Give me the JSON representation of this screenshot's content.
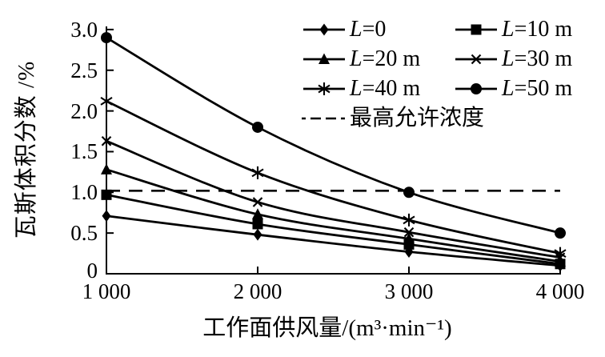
{
  "figure": {
    "background": "#ffffff",
    "line_color": "#000000",
    "text_color": "#000000"
  },
  "chart_data": {
    "type": "line",
    "title": "",
    "xlabel": "工作面供风量/(m³·min⁻¹)",
    "ylabel": "瓦斯体积分数 /%",
    "x": [
      1000,
      2000,
      3000,
      4000
    ],
    "x_tick_labels": [
      "1 000",
      "2 000",
      "3 000",
      "4 000"
    ],
    "y_ticks": [
      0,
      0.5,
      1.0,
      1.5,
      2.0,
      2.5,
      3.0
    ],
    "y_tick_labels": [
      "0",
      "0.5",
      "1.0",
      "1.5",
      "2.0",
      "2.5",
      "3.0"
    ],
    "xlim": [
      1000,
      4000
    ],
    "ylim": [
      0,
      3.05
    ],
    "grid": false,
    "legend_position": "top-right-inside",
    "series": [
      {
        "label": "L=0",
        "marker": "diamond",
        "values": [
          0.71,
          0.48,
          0.27,
          0.1
        ]
      },
      {
        "label": "L=10 m",
        "marker": "square",
        "values": [
          0.97,
          0.61,
          0.36,
          0.12
        ]
      },
      {
        "label": "L=20 m",
        "marker": "triangle",
        "values": [
          1.28,
          0.73,
          0.43,
          0.15
        ]
      },
      {
        "label": "L=30 m",
        "marker": "x",
        "values": [
          1.63,
          0.88,
          0.51,
          0.2
        ]
      },
      {
        "label": "L=40 m",
        "marker": "asterisk",
        "values": [
          2.12,
          1.24,
          0.66,
          0.25
        ]
      },
      {
        "label": "L=50 m",
        "marker": "circle",
        "values": [
          2.9,
          1.8,
          1.0,
          0.5
        ]
      }
    ],
    "threshold": {
      "label": "最高允许浓度",
      "value": 1.0,
      "style": "dashed"
    }
  }
}
